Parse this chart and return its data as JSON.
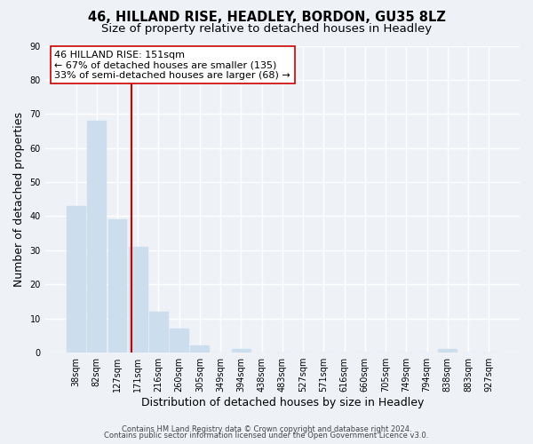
{
  "title": "46, HILLAND RISE, HEADLEY, BORDON, GU35 8LZ",
  "subtitle": "Size of property relative to detached houses in Headley",
  "xlabel": "Distribution of detached houses by size in Headley",
  "ylabel": "Number of detached properties",
  "bar_labels": [
    "38sqm",
    "82sqm",
    "127sqm",
    "171sqm",
    "216sqm",
    "260sqm",
    "305sqm",
    "349sqm",
    "394sqm",
    "438sqm",
    "483sqm",
    "527sqm",
    "571sqm",
    "616sqm",
    "660sqm",
    "705sqm",
    "749sqm",
    "794sqm",
    "838sqm",
    "883sqm",
    "927sqm"
  ],
  "bar_values": [
    43,
    68,
    39,
    31,
    12,
    7,
    2,
    0,
    1,
    0,
    0,
    0,
    0,
    0,
    0,
    0,
    0,
    0,
    1,
    0,
    0
  ],
  "bar_color": "#ccdded",
  "vline_x": 2.67,
  "vline_color": "#cc0000",
  "annotation_line1": "46 HILLAND RISE: 151sqm",
  "annotation_line2": "← 67% of detached houses are smaller (135)",
  "annotation_line3": "33% of semi-detached houses are larger (68) →",
  "ylim": [
    0,
    90
  ],
  "yticks": [
    0,
    10,
    20,
    30,
    40,
    50,
    60,
    70,
    80,
    90
  ],
  "footer_line1": "Contains HM Land Registry data © Crown copyright and database right 2024.",
  "footer_line2": "Contains public sector information licensed under the Open Government Licence v3.0.",
  "background_color": "#eef2f7",
  "grid_color": "#ffffff",
  "title_fontsize": 10.5,
  "subtitle_fontsize": 9.5,
  "axis_label_fontsize": 9,
  "tick_fontsize": 7,
  "annotation_fontsize": 8,
  "footer_fontsize": 6
}
